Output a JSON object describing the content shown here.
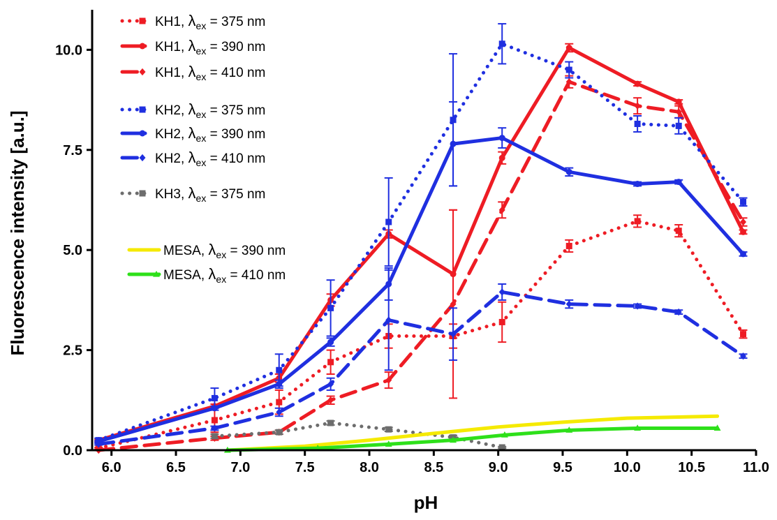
{
  "chart_data": {
    "type": "line",
    "title": "",
    "xlabel": "pH",
    "ylabel": "Fluorescence intensity [a.u.]",
    "xlim": [
      5.85,
      11.0
    ],
    "ylim": [
      0.0,
      11.0
    ],
    "xticks": [
      {
        "value": 6.0,
        "label": "6.0"
      },
      {
        "value": 6.5,
        "label": "6.5"
      },
      {
        "value": 7.0,
        "label": "7.0"
      },
      {
        "value": 7.5,
        "label": "7.5"
      },
      {
        "value": 8.0,
        "label": "8.0"
      },
      {
        "value": 8.5,
        "label": "8.5"
      },
      {
        "value": 9.0,
        "label": "9.0"
      },
      {
        "value": 9.5,
        "label": "9.5"
      },
      {
        "value": 10.0,
        "label": "10.0"
      },
      {
        "value": 10.5,
        "label": "10.5"
      },
      {
        "value": 11.0,
        "label": "11.0"
      }
    ],
    "yticks": [
      {
        "value": 0.0,
        "label": "0.0"
      },
      {
        "value": 2.5,
        "label": "2.5"
      },
      {
        "value": 5.0,
        "label": "5.0"
      },
      {
        "value": 7.5,
        "label": "7.5"
      },
      {
        "value": 10.0,
        "label": "10.0"
      }
    ],
    "grid": false,
    "legend_position": "top-left",
    "series": [
      {
        "key": "kh1-375",
        "legend": {
          "prefix": "KH1, ",
          "lambda": "λ",
          "sub": "ex",
          "suffix": " = 375 nm"
        },
        "color": "#ee1c24",
        "line_style": "dotted",
        "marker": "square",
        "points": [
          {
            "x": 5.9,
            "y": 0.05,
            "err": 0.02
          },
          {
            "x": 6.8,
            "y": 0.75,
            "err": 0.3
          },
          {
            "x": 7.3,
            "y": 1.2,
            "err": 0.3
          },
          {
            "x": 7.7,
            "y": 2.2,
            "err": 0.3
          },
          {
            "x": 8.15,
            "y": 2.85,
            "err": 0.3
          },
          {
            "x": 8.65,
            "y": 2.85,
            "err": 0.3
          },
          {
            "x": 9.03,
            "y": 3.2,
            "err": 0.5
          },
          {
            "x": 9.55,
            "y": 5.1,
            "err": 0.15
          },
          {
            "x": 10.08,
            "y": 5.72,
            "err": 0.15
          },
          {
            "x": 10.4,
            "y": 5.48,
            "err": 0.15
          },
          {
            "x": 10.9,
            "y": 2.9,
            "err": 0.1
          }
        ]
      },
      {
        "key": "kh1-390",
        "legend": {
          "prefix": "KH1, ",
          "lambda": "λ",
          "sub": "ex",
          "suffix": " = 390 nm"
        },
        "color": "#ee1c24",
        "line_style": "solid",
        "marker": "circle",
        "points": [
          {
            "x": 5.9,
            "y": 0.25,
            "err": 0.02
          },
          {
            "x": 6.8,
            "y": 1.1,
            "err": 0.05
          },
          {
            "x": 7.3,
            "y": 1.8,
            "err": 0.1
          },
          {
            "x": 7.7,
            "y": 3.75,
            "err": 0.15
          },
          {
            "x": 8.15,
            "y": 5.4,
            "err": 0.1
          },
          {
            "x": 8.65,
            "y": 4.4,
            "err": 1.6
          },
          {
            "x": 9.03,
            "y": 7.3,
            "err": 0.15
          },
          {
            "x": 9.55,
            "y": 10.05,
            "err": 0.1
          },
          {
            "x": 10.08,
            "y": 9.15,
            "err": 0.05
          },
          {
            "x": 10.4,
            "y": 8.7,
            "err": 0.05
          },
          {
            "x": 10.9,
            "y": 5.45,
            "err": 0.05
          }
        ]
      },
      {
        "key": "kh1-410",
        "legend": {
          "prefix": "KH1, ",
          "lambda": "λ",
          "sub": "ex",
          "suffix": " = 410 nm"
        },
        "color": "#ee1c24",
        "line_style": "dashed",
        "marker": "diamond",
        "points": [
          {
            "x": 5.9,
            "y": 0.0,
            "err": 0.0
          },
          {
            "x": 6.8,
            "y": 0.3,
            "err": 0.05
          },
          {
            "x": 7.3,
            "y": 0.45,
            "err": 0.05
          },
          {
            "x": 7.7,
            "y": 1.25,
            "err": 0.1
          },
          {
            "x": 8.15,
            "y": 1.75,
            "err": 0.2
          },
          {
            "x": 8.65,
            "y": 3.65,
            "err": 2.35
          },
          {
            "x": 9.03,
            "y": 6.0,
            "err": 0.2
          },
          {
            "x": 9.55,
            "y": 9.2,
            "err": 0.15
          },
          {
            "x": 10.08,
            "y": 8.6,
            "err": 0.2
          },
          {
            "x": 10.4,
            "y": 8.45,
            "err": 0.15
          },
          {
            "x": 10.9,
            "y": 5.7,
            "err": 0.1
          }
        ]
      },
      {
        "key": "kh2-375",
        "legend": {
          "prefix": "KH2, ",
          "lambda": "λ",
          "sub": "ex",
          "suffix": " = 375 nm"
        },
        "color": "#1f2fe0",
        "line_style": "dotted",
        "marker": "square",
        "points": [
          {
            "x": 5.9,
            "y": 0.25,
            "err": 0.05
          },
          {
            "x": 6.8,
            "y": 1.3,
            "err": 0.25
          },
          {
            "x": 7.3,
            "y": 2.0,
            "err": 0.4
          },
          {
            "x": 7.7,
            "y": 3.55,
            "err": 0.7
          },
          {
            "x": 8.15,
            "y": 5.7,
            "err": 1.1
          },
          {
            "x": 8.65,
            "y": 8.25,
            "err": 1.65
          },
          {
            "x": 9.03,
            "y": 10.15,
            "err": 0.5
          },
          {
            "x": 9.55,
            "y": 9.5,
            "err": 0.2
          },
          {
            "x": 10.08,
            "y": 8.15,
            "err": 0.2
          },
          {
            "x": 10.4,
            "y": 8.1,
            "err": 0.2
          },
          {
            "x": 10.9,
            "y": 6.2,
            "err": 0.1
          }
        ]
      },
      {
        "key": "kh2-390",
        "legend": {
          "prefix": "KH2, ",
          "lambda": "λ",
          "sub": "ex",
          "suffix": " = 390 nm"
        },
        "color": "#1f2fe0",
        "line_style": "solid",
        "marker": "circle",
        "points": [
          {
            "x": 5.9,
            "y": 0.22,
            "err": 0.02
          },
          {
            "x": 6.8,
            "y": 1.05,
            "err": 0.05
          },
          {
            "x": 7.3,
            "y": 1.65,
            "err": 0.1
          },
          {
            "x": 7.7,
            "y": 2.7,
            "err": 0.1
          },
          {
            "x": 8.15,
            "y": 4.15,
            "err": 0.4
          },
          {
            "x": 8.65,
            "y": 7.65,
            "err": 1.05
          },
          {
            "x": 9.03,
            "y": 7.8,
            "err": 0.25
          },
          {
            "x": 9.55,
            "y": 6.95,
            "err": 0.1
          },
          {
            "x": 10.08,
            "y": 6.65,
            "err": 0.05
          },
          {
            "x": 10.4,
            "y": 6.7,
            "err": 0.05
          },
          {
            "x": 10.9,
            "y": 4.9,
            "err": 0.05
          }
        ]
      },
      {
        "key": "kh2-410",
        "legend": {
          "prefix": "KH2, ",
          "lambda": "λ",
          "sub": "ex",
          "suffix": " = 410 nm"
        },
        "color": "#1f2fe0",
        "line_style": "dashed",
        "marker": "diamond",
        "points": [
          {
            "x": 5.9,
            "y": 0.15,
            "err": 0.02
          },
          {
            "x": 6.8,
            "y": 0.55,
            "err": 0.05
          },
          {
            "x": 7.3,
            "y": 0.95,
            "err": 0.1
          },
          {
            "x": 7.7,
            "y": 1.65,
            "err": 0.15
          },
          {
            "x": 8.15,
            "y": 3.25,
            "err": 1.25
          },
          {
            "x": 8.65,
            "y": 2.9,
            "err": 0.65
          },
          {
            "x": 9.03,
            "y": 3.95,
            "err": 0.2
          },
          {
            "x": 9.55,
            "y": 3.65,
            "err": 0.1
          },
          {
            "x": 10.08,
            "y": 3.6,
            "err": 0.05
          },
          {
            "x": 10.4,
            "y": 3.45,
            "err": 0.05
          },
          {
            "x": 10.9,
            "y": 2.35,
            "err": 0.05
          }
        ]
      },
      {
        "key": "kh3-375",
        "legend": {
          "prefix": "KH3, ",
          "lambda": "λ",
          "sub": "ex",
          "suffix": " = 375 nm"
        },
        "color": "#6d6d6d",
        "line_style": "dotted",
        "marker": "square",
        "points": [
          {
            "x": 6.8,
            "y": 0.35,
            "err": 0.05
          },
          {
            "x": 7.3,
            "y": 0.45,
            "err": 0.05
          },
          {
            "x": 7.7,
            "y": 0.68,
            "err": 0.05
          },
          {
            "x": 8.15,
            "y": 0.52,
            "err": 0.05
          },
          {
            "x": 8.65,
            "y": 0.32,
            "err": 0.05
          },
          {
            "x": 9.03,
            "y": 0.07,
            "err": 0.02
          }
        ]
      },
      {
        "key": "mesa-390",
        "legend": {
          "prefix": "MESA, ",
          "lambda": "λ",
          "sub": "ex",
          "suffix": " = 390 nm"
        },
        "color": "#f5ea00",
        "line_style": "solid",
        "marker": "none",
        "points": [
          {
            "x": 6.9,
            "y": 0.0
          },
          {
            "x": 7.5,
            "y": 0.1
          },
          {
            "x": 8.0,
            "y": 0.25
          },
          {
            "x": 8.5,
            "y": 0.42
          },
          {
            "x": 9.0,
            "y": 0.58
          },
          {
            "x": 9.5,
            "y": 0.7
          },
          {
            "x": 10.0,
            "y": 0.8
          },
          {
            "x": 10.7,
            "y": 0.85
          }
        ]
      },
      {
        "key": "mesa-410",
        "legend": {
          "prefix": "MESA, ",
          "lambda": "λ",
          "sub": "ex",
          "suffix": " = 410 nm"
        },
        "color": "#2ee01a",
        "line_style": "solid",
        "marker": "triangle",
        "points": [
          {
            "x": 6.9,
            "y": 0.0
          },
          {
            "x": 7.6,
            "y": 0.05
          },
          {
            "x": 8.15,
            "y": 0.15
          },
          {
            "x": 8.65,
            "y": 0.25
          },
          {
            "x": 9.05,
            "y": 0.38
          },
          {
            "x": 9.55,
            "y": 0.5
          },
          {
            "x": 10.08,
            "y": 0.55
          },
          {
            "x": 10.7,
            "y": 0.55
          }
        ]
      }
    ]
  }
}
